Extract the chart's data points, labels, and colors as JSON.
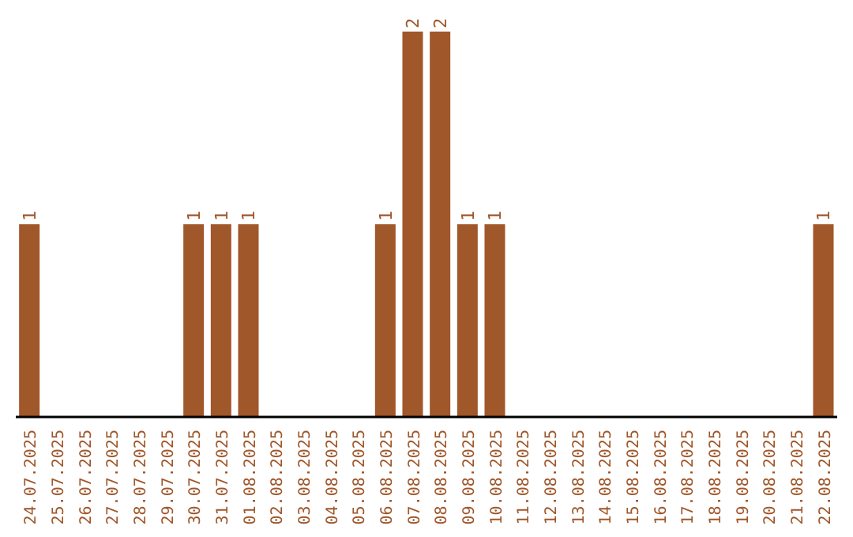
{
  "chart_data": {
    "type": "bar",
    "categories": [
      "24.07.2025",
      "25.07.2025",
      "26.07.2025",
      "27.07.2025",
      "28.07.2025",
      "29.07.2025",
      "30.07.2025",
      "31.07.2025",
      "01.08.2025",
      "02.08.2025",
      "03.08.2025",
      "04.08.2025",
      "05.08.2025",
      "06.08.2025",
      "07.08.2025",
      "08.08.2025",
      "09.08.2025",
      "10.08.2025",
      "11.08.2025",
      "12.08.2025",
      "13.08.2025",
      "14.08.2025",
      "15.08.2025",
      "16.08.2025",
      "17.08.2025",
      "18.08.2025",
      "19.08.2025",
      "20.08.2025",
      "21.08.2025",
      "22.08.2025"
    ],
    "values": [
      1,
      0,
      0,
      0,
      0,
      0,
      1,
      1,
      1,
      0,
      0,
      0,
      0,
      1,
      2,
      2,
      1,
      1,
      0,
      0,
      0,
      0,
      0,
      0,
      0,
      0,
      0,
      0,
      0,
      1
    ],
    "value_labels": [
      "1",
      null,
      null,
      null,
      null,
      null,
      "1",
      "1",
      "1",
      null,
      null,
      null,
      null,
      "1",
      "2",
      "2",
      "1",
      "1",
      null,
      null,
      null,
      null,
      null,
      null,
      null,
      null,
      null,
      null,
      null,
      "1"
    ],
    "color": "#a0572a",
    "grid": false,
    "legend": false
  }
}
